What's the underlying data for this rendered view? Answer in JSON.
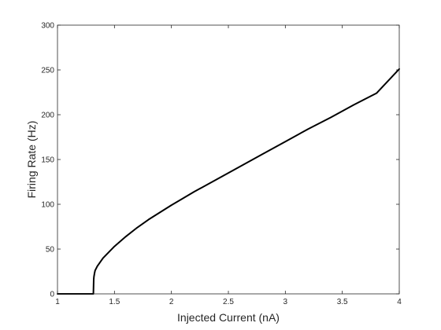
{
  "chart_data": {
    "type": "line",
    "title": "",
    "xlabel": "Injected Current (nA)",
    "ylabel": "Firing Rate (Hz)",
    "xlim": [
      1,
      4
    ],
    "ylim": [
      0,
      300
    ],
    "xticks": [
      1,
      1.5,
      2,
      2.5,
      3,
      3.5,
      4
    ],
    "xtick_labels": [
      "1",
      "1.5",
      "2",
      "2.5",
      "3",
      "3.5",
      "4"
    ],
    "yticks": [
      0,
      50,
      100,
      150,
      200,
      250,
      300
    ],
    "ytick_labels": [
      "0",
      "50",
      "100",
      "150",
      "200",
      "250",
      "300"
    ],
    "grid": false,
    "box": true,
    "line_color": "#000000",
    "series": [
      {
        "x": [
          1.0,
          1.1,
          1.2,
          1.3,
          1.315,
          1.318,
          1.32,
          1.325,
          1.33,
          1.35,
          1.4,
          1.5,
          1.6,
          1.7,
          1.8,
          1.9,
          2.0,
          2.2,
          2.4,
          2.6,
          2.8,
          3.0,
          3.2,
          3.4,
          3.6,
          3.8,
          4.0
        ],
        "y": [
          0,
          0,
          0,
          0,
          0,
          16,
          19,
          23,
          26,
          31,
          40,
          53,
          64,
          74,
          83,
          91,
          99,
          114,
          128,
          142,
          156,
          170,
          184,
          197,
          211,
          224,
          251
        ]
      }
    ]
  }
}
